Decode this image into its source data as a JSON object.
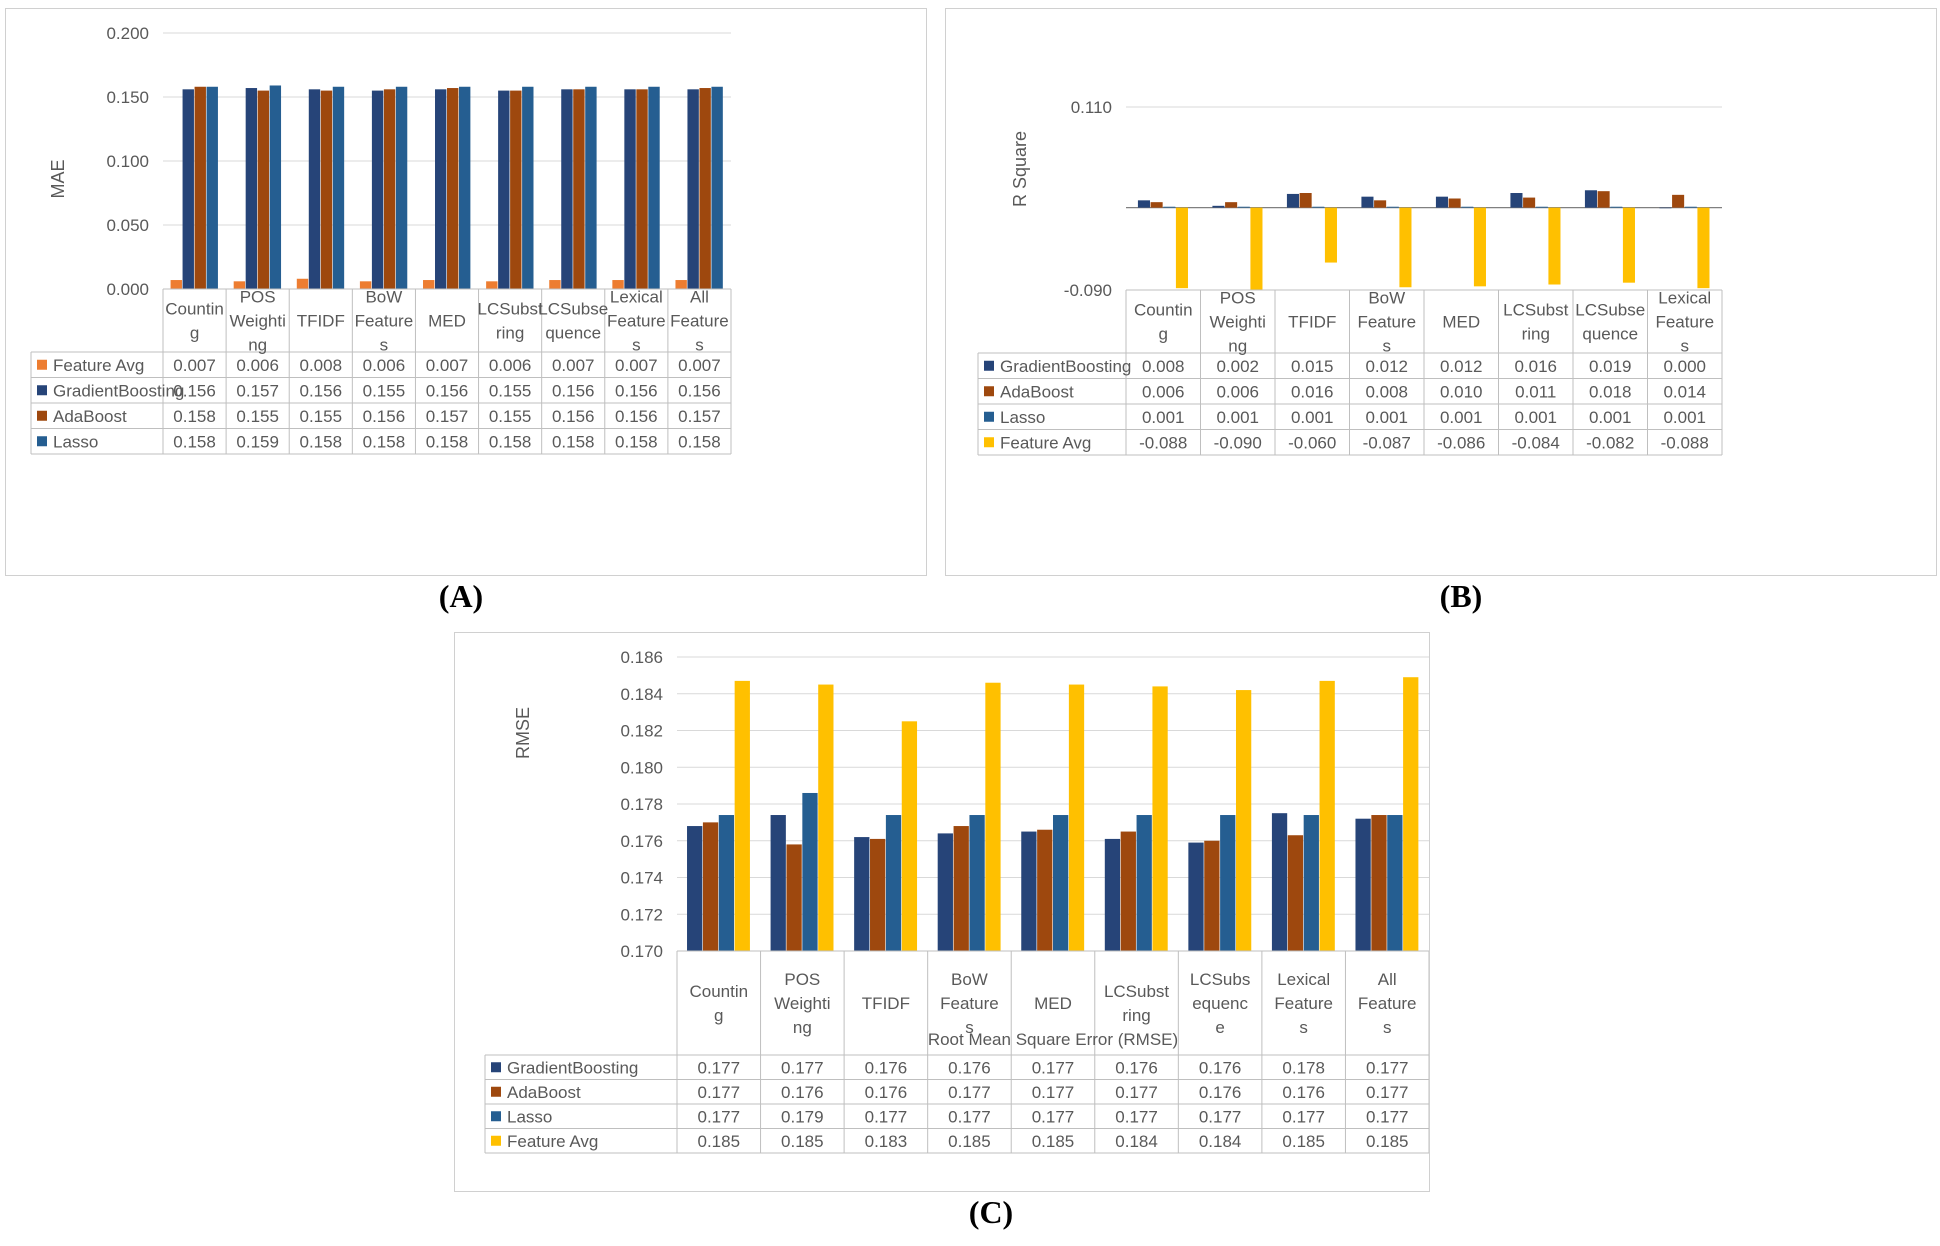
{
  "figure_captions": {
    "a": "(A)",
    "b": "(B)",
    "c": "(C)"
  },
  "colors": {
    "gradient_boosting": "#264478",
    "adaboost": "#9E480E",
    "lasso": "#255E91",
    "feature_avg_orange": "#ED7D31",
    "feature_avg_yellow": "#FFC000",
    "grid": "#d9d9d9",
    "axis_text": "#595959"
  },
  "chart_data": [
    {
      "id": "A",
      "type": "bar",
      "title": "",
      "xlabel": "",
      "ylabel": "MAE",
      "ylim": [
        0.0,
        0.2
      ],
      "yticks": [
        "0.000",
        "0.050",
        "0.100",
        "0.150",
        "0.200"
      ],
      "categories": [
        "Countin g",
        "POS Weighti ng",
        "TFIDF",
        "BoW Feature s",
        "MED",
        "LCSubst ring",
        "LCSubse quence",
        "Lexical Feature s",
        "All Feature s"
      ],
      "series": [
        {
          "name": "Feature Avg",
          "color": "#ED7D31",
          "values": [
            0.007,
            0.006,
            0.008,
            0.006,
            0.007,
            0.006,
            0.007,
            0.007,
            0.007
          ],
          "labels": [
            "0.007",
            "0.006",
            "0.008",
            "0.006",
            "0.007",
            "0.006",
            "0.007",
            "0.007",
            "0.007"
          ]
        },
        {
          "name": "GradientBoosting",
          "color": "#264478",
          "values": [
            0.156,
            0.157,
            0.156,
            0.155,
            0.156,
            0.155,
            0.156,
            0.156,
            0.156
          ],
          "labels": [
            "0.156",
            "0.157",
            "0.156",
            "0.155",
            "0.156",
            "0.155",
            "0.156",
            "0.156",
            "0.156"
          ]
        },
        {
          "name": "AdaBoost",
          "color": "#9E480E",
          "values": [
            0.158,
            0.155,
            0.155,
            0.156,
            0.157,
            0.155,
            0.156,
            0.156,
            0.157
          ],
          "labels": [
            "0.158",
            "0.155",
            "0.155",
            "0.156",
            "0.157",
            "0.155",
            "0.156",
            "0.156",
            "0.157"
          ]
        },
        {
          "name": "Lasso",
          "color": "#255E91",
          "values": [
            0.158,
            0.159,
            0.158,
            0.158,
            0.158,
            0.158,
            0.158,
            0.158,
            0.158
          ],
          "labels": [
            "0.158",
            "0.159",
            "0.158",
            "0.158",
            "0.158",
            "0.158",
            "0.158",
            "0.158",
            "0.158"
          ]
        }
      ]
    },
    {
      "id": "B",
      "type": "bar",
      "title": "",
      "xlabel": "",
      "ylabel": "R Square",
      "ylim": [
        -0.09,
        0.11
      ],
      "yticks": [
        "-0.090",
        "0.110"
      ],
      "categories": [
        "Countin g",
        "POS Weighti ng",
        "TFIDF",
        "BoW Feature s",
        "MED",
        "LCSubst ring",
        "LCSubse quence",
        "Lexical Feature s"
      ],
      "series": [
        {
          "name": "GradientBoosting",
          "color": "#264478",
          "values": [
            0.008,
            0.002,
            0.015,
            0.012,
            0.012,
            0.016,
            0.019,
            0.0
          ],
          "labels": [
            "0.008",
            "0.002",
            "0.015",
            "0.012",
            "0.012",
            "0.016",
            "0.019",
            "0.000"
          ]
        },
        {
          "name": "AdaBoost",
          "color": "#9E480E",
          "values": [
            0.006,
            0.006,
            0.016,
            0.008,
            0.01,
            0.011,
            0.018,
            0.014
          ],
          "labels": [
            "0.006",
            "0.006",
            "0.016",
            "0.008",
            "0.010",
            "0.011",
            "0.018",
            "0.014"
          ]
        },
        {
          "name": "Lasso",
          "color": "#255E91",
          "values": [
            0.001,
            0.001,
            0.001,
            0.001,
            0.001,
            0.001,
            0.001,
            0.001
          ],
          "labels": [
            "0.001",
            "0.001",
            "0.001",
            "0.001",
            "0.001",
            "0.001",
            "0.001",
            "0.001"
          ]
        },
        {
          "name": "Feature Avg",
          "color": "#FFC000",
          "values": [
            -0.088,
            -0.09,
            -0.06,
            -0.087,
            -0.086,
            -0.084,
            -0.082,
            -0.088
          ],
          "labels": [
            "-0.088",
            "-0.090",
            "-0.060",
            "-0.087",
            "-0.086",
            "-0.084",
            "-0.082",
            "-0.088"
          ]
        }
      ]
    },
    {
      "id": "C",
      "type": "bar",
      "title": "",
      "xlabel": "Root Mean Square Error (RMSE)",
      "ylabel": "RMSE",
      "ylim": [
        0.17,
        0.186
      ],
      "yticks": [
        "0.170",
        "0.172",
        "0.174",
        "0.176",
        "0.178",
        "0.180",
        "0.182",
        "0.184",
        "0.186"
      ],
      "categories": [
        "Countin g",
        "POS Weighti ng",
        "TFIDF",
        "BoW Feature s",
        "MED",
        "LCSubst ring",
        "LCSubs equenc e",
        "Lexical Feature s",
        "All Feature s"
      ],
      "series": [
        {
          "name": "GradientBoosting",
          "color": "#264478",
          "values": [
            0.1768,
            0.1774,
            0.1762,
            0.1764,
            0.1765,
            0.1761,
            0.1759,
            0.1775,
            0.1772
          ],
          "labels": [
            "0.177",
            "0.177",
            "0.176",
            "0.176",
            "0.177",
            "0.176",
            "0.176",
            "0.178",
            "0.177"
          ]
        },
        {
          "name": "AdaBoost",
          "color": "#9E480E",
          "values": [
            0.177,
            0.1758,
            0.1761,
            0.1768,
            0.1766,
            0.1765,
            0.176,
            0.1763,
            0.1774
          ],
          "labels": [
            "0.177",
            "0.176",
            "0.176",
            "0.177",
            "0.177",
            "0.177",
            "0.176",
            "0.176",
            "0.177"
          ]
        },
        {
          "name": "Lasso",
          "color": "#255E91",
          "values": [
            0.1774,
            0.1786,
            0.1774,
            0.1774,
            0.1774,
            0.1774,
            0.1774,
            0.1774,
            0.1774
          ],
          "labels": [
            "0.177",
            "0.179",
            "0.177",
            "0.177",
            "0.177",
            "0.177",
            "0.177",
            "0.177",
            "0.177"
          ]
        },
        {
          "name": "Feature Avg",
          "color": "#FFC000",
          "values": [
            0.1847,
            0.1845,
            0.1825,
            0.1846,
            0.1845,
            0.1844,
            0.1842,
            0.1847,
            0.1849
          ],
          "labels": [
            "0.185",
            "0.185",
            "0.183",
            "0.185",
            "0.185",
            "0.184",
            "0.184",
            "0.185",
            "0.185"
          ]
        }
      ]
    }
  ]
}
